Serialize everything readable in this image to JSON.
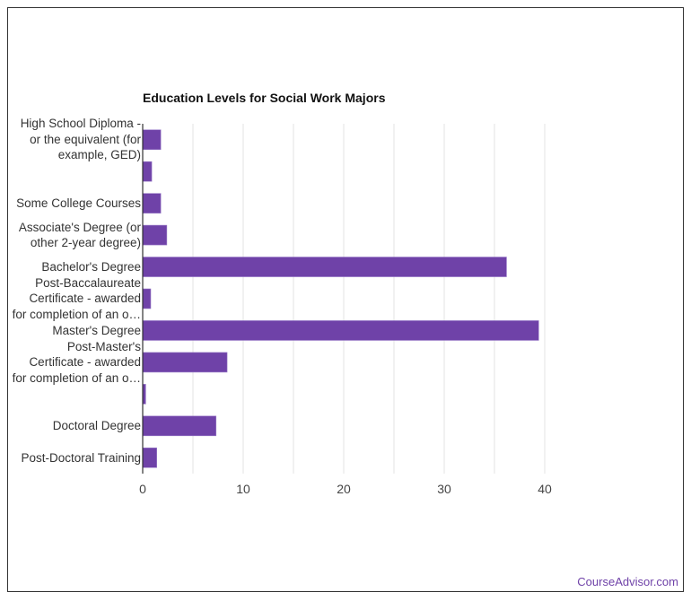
{
  "chart_data": {
    "type": "bar",
    "orientation": "horizontal",
    "title": "Education Levels for Social Work Majors",
    "categories": [
      "High School Diploma - or the equivalent (for example, GED)",
      "",
      "Some College Courses",
      "Associate's Degree (or other 2-year degree)",
      "Bachelor's Degree",
      "Post-Baccalaureate Certificate - awarded for completion of an o…",
      "Master's Degree",
      "Post-Master's Certificate - awarded for completion of an o…",
      "",
      "Doctoral Degree",
      "Post-Doctoral Training"
    ],
    "category_lines": [
      [
        "High School Diploma -",
        "or the equivalent (for",
        "example, GED)"
      ],
      [],
      [
        "Some College Courses"
      ],
      [
        "Associate's Degree (or",
        "other 2-year degree)"
      ],
      [
        "Bachelor's Degree"
      ],
      [
        "Post-Baccalaureate",
        "Certificate - awarded",
        "for completion of an o…"
      ],
      [
        "Master's Degree"
      ],
      [
        "Post-Master's",
        "Certificate - awarded",
        "for completion of an o…"
      ],
      [],
      [
        "Doctoral Degree"
      ],
      [
        "Post-Doctoral Training"
      ]
    ],
    "values": [
      1.8,
      0.9,
      1.8,
      2.4,
      36.2,
      0.8,
      39.4,
      8.4,
      0.3,
      7.3,
      1.4
    ],
    "xlim": [
      0,
      40
    ],
    "xticks": [
      0,
      10,
      20,
      30,
      40
    ],
    "grid": true,
    "bar_color": "#6f42a8"
  },
  "credit": "CourseAdvisor.com"
}
